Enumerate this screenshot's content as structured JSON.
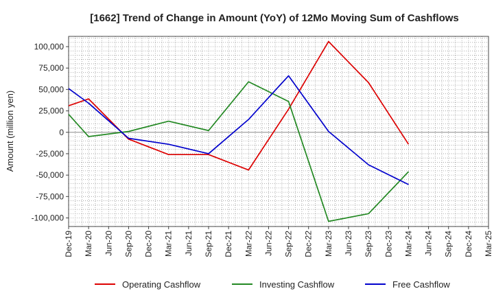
{
  "chart_data": {
    "type": "line",
    "title": "[1662]  Trend of Change in Amount (YoY) of 12Mo Moving Sum of Cashflows",
    "xlabel": "",
    "ylabel": "Amount (million yen)",
    "ylim": [
      -110000,
      112000
    ],
    "yticks": [
      100000,
      75000,
      50000,
      25000,
      0,
      -25000,
      -50000,
      -75000,
      -100000
    ],
    "ytick_labels": [
      "100,000",
      "75,000",
      "50,000",
      "25,000",
      "0",
      "-25,000",
      "-50,000",
      "-75,000",
      "-100,000"
    ],
    "categories": [
      "Dec-19",
      "Mar-20",
      "Jun-20",
      "Sep-20",
      "Dec-20",
      "Mar-21",
      "Jun-21",
      "Sep-21",
      "Dec-21",
      "Mar-22",
      "Jun-22",
      "Sep-22",
      "Dec-22",
      "Mar-23",
      "Jun-23",
      "Sep-23",
      "Dec-23",
      "Mar-24",
      "Jun-24",
      "Sep-24",
      "Dec-24",
      "Mar-25"
    ],
    "series": [
      {
        "name": "Operating Cashflow",
        "color": "#dd0000",
        "values": [
          31000,
          39000,
          null,
          -8000,
          null,
          -26000,
          null,
          -26000,
          null,
          -44000,
          null,
          27000,
          null,
          106000,
          null,
          58000,
          null,
          -14000,
          null,
          null,
          null,
          null
        ]
      },
      {
        "name": "Investing Cashflow",
        "color": "#228822",
        "values": [
          21000,
          -5000,
          null,
          1000,
          null,
          13000,
          null,
          2000,
          null,
          59000,
          null,
          36000,
          null,
          -104000,
          null,
          -95000,
          null,
          -46000,
          null,
          null,
          null,
          null
        ]
      },
      {
        "name": "Free Cashflow",
        "color": "#0000cc",
        "values": [
          51000,
          34000,
          null,
          -7000,
          null,
          -14000,
          null,
          -25000,
          null,
          15000,
          null,
          66000,
          null,
          1000,
          null,
          -38000,
          null,
          -61000,
          null,
          null,
          null,
          null
        ]
      }
    ],
    "legend_position": "bottom",
    "grid": true
  }
}
